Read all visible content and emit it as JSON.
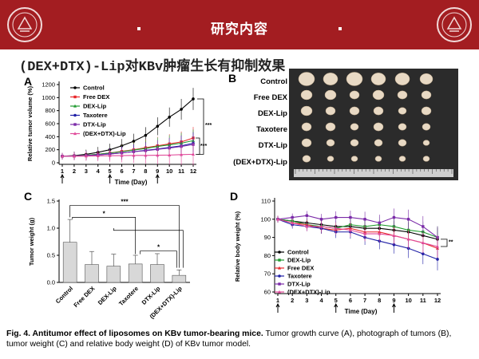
{
  "header": {
    "title": "研究内容"
  },
  "slide_title": "(DEX+DTX)-Lip对KBv肿瘤生长有抑制效果",
  "panels": {
    "a": "A",
    "b": "B",
    "c": "C",
    "d": "D"
  },
  "photo_labels": [
    "Control",
    "Free DEX",
    "DEX-Lip",
    "Taxotere",
    "DTX-Lip",
    "(DEX+DTX)-Lip"
  ],
  "caption": {
    "bold": "Fig. 4. Antitumor effect of liposomes on KBv tumor-bearing mice.",
    "text": " Tumor growth curve (A), photograph of tumors (B), tumor weight (C) and relative body weight (D) of KBv tumor model."
  },
  "colors": {
    "banner": "#a31d21",
    "Control": "#000000",
    "Free DEX": "#e8262a",
    "DEX-Lip": "#1f9a2e",
    "Taxotere": "#1f1fa6",
    "DTX-Lip": "#7a2aa8",
    "(DEX+DTX)-Lip": "#e04a9a"
  },
  "chart_data": [
    {
      "type": "line",
      "panel": "A",
      "ylabel": "Relative tumor volume (%)",
      "xlabel": "Time (Day)",
      "x": [
        1,
        2,
        3,
        4,
        5,
        6,
        7,
        8,
        9,
        10,
        11,
        12
      ],
      "xticks": [
        1,
        2,
        3,
        4,
        5,
        6,
        7,
        8,
        9,
        10,
        11,
        12
      ],
      "ylim": [
        0,
        1200
      ],
      "yticks": [
        0,
        200,
        400,
        600,
        800,
        1000,
        1200
      ],
      "dosing_days": [
        1,
        5,
        9
      ],
      "series": [
        {
          "name": "Control",
          "values": [
            100,
            110,
            130,
            160,
            200,
            260,
            330,
            420,
            560,
            700,
            820,
            980
          ]
        },
        {
          "name": "Free DEX",
          "values": [
            100,
            105,
            115,
            130,
            150,
            175,
            200,
            230,
            260,
            290,
            320,
            380
          ]
        },
        {
          "name": "DEX-Lip",
          "values": [
            100,
            105,
            115,
            130,
            150,
            170,
            195,
            220,
            250,
            275,
            300,
            340
          ]
        },
        {
          "name": "Taxotere",
          "values": [
            100,
            103,
            110,
            120,
            135,
            150,
            170,
            190,
            210,
            235,
            260,
            300
          ]
        },
        {
          "name": "DTX-Lip",
          "values": [
            100,
            103,
            110,
            122,
            135,
            150,
            170,
            185,
            205,
            225,
            250,
            280
          ]
        },
        {
          "name": "(DEX+DTX)-Lip",
          "values": [
            100,
            100,
            102,
            105,
            108,
            110,
            112,
            113,
            115,
            118,
            125,
            130
          ]
        }
      ],
      "annotations": [
        "***",
        "***"
      ]
    },
    {
      "type": "bar",
      "panel": "C",
      "ylabel": "Tumor weight (g)",
      "ylim": [
        0,
        1.5
      ],
      "yticks": [
        "0.0",
        "0.5",
        "1.0",
        "1.5"
      ],
      "categories": [
        "Control",
        "Free DEX",
        "DEX-Lip",
        "Taxotere",
        "DTX-Lip",
        "(DEX+DTX)-Lip"
      ],
      "values": [
        0.74,
        0.33,
        0.3,
        0.34,
        0.33,
        0.13
      ],
      "errors": [
        0.42,
        0.24,
        0.22,
        0.16,
        0.2,
        0.1
      ],
      "annotations": [
        "***",
        "*",
        "*"
      ]
    },
    {
      "type": "line",
      "panel": "D",
      "ylabel": "Relative body weight (%)",
      "xlabel": "Time (Day)",
      "x": [
        1,
        2,
        3,
        4,
        5,
        6,
        7,
        8,
        9,
        10,
        11,
        12
      ],
      "xticks": [
        1,
        2,
        3,
        4,
        5,
        6,
        7,
        8,
        9,
        10,
        11,
        12
      ],
      "ylim": [
        60,
        110
      ],
      "yticks": [
        60,
        70,
        80,
        90,
        100,
        110
      ],
      "dosing_days": [
        1,
        5,
        9
      ],
      "series": [
        {
          "name": "Control",
          "values": [
            100,
            99,
            98,
            97,
            96,
            96,
            95,
            95,
            94,
            93,
            91,
            89
          ]
        },
        {
          "name": "DEX-Lip",
          "values": [
            100,
            99,
            97,
            96,
            95,
            97,
            96,
            97,
            96,
            94,
            93,
            90
          ]
        },
        {
          "name": "Free DEX",
          "values": [
            100,
            98,
            97,
            95,
            94,
            95,
            93,
            93,
            91,
            89,
            87,
            84
          ]
        },
        {
          "name": "Taxotere",
          "values": [
            100,
            97,
            96,
            95,
            93,
            93,
            90,
            88,
            86,
            84,
            81,
            78
          ]
        },
        {
          "name": "DTX-Lip",
          "values": [
            100,
            101,
            102,
            100,
            101,
            101,
            100,
            98,
            101,
            100,
            96,
            90
          ]
        },
        {
          "name": "(DEX+DTX)-Lip",
          "values": [
            100,
            98,
            96,
            96,
            95,
            94,
            92,
            92,
            91,
            89,
            87,
            85
          ]
        }
      ],
      "annotations": [
        "**"
      ]
    }
  ]
}
